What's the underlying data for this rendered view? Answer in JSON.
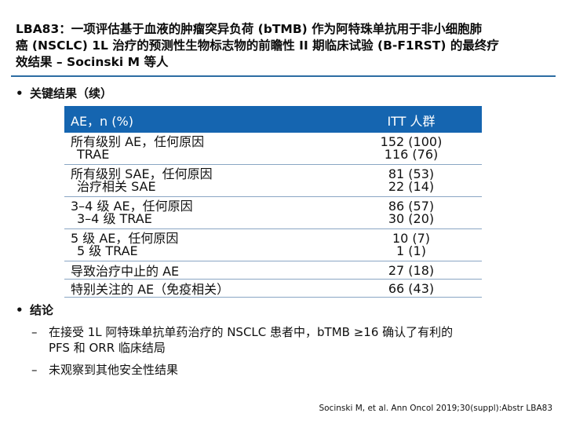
{
  "title": {
    "line1": "LBA83：一项评估基于血液的肿瘤突异负荷 (bTMB) 作为阿特珠单抗用于非小细胞肺",
    "line2": "癌 (NSCLC) 1L 治疗的预测性生物标志物的前瞻性 II 期临床试验 (B-F1RST) 的最终疗",
    "line3": "效结果 – Socinski M 等人"
  },
  "section1": {
    "bullet": "•",
    "label": "关键结果（续）"
  },
  "table": {
    "header": {
      "col1": "AE，n (%)",
      "col2": "ITT 人群"
    },
    "rows": [
      {
        "label": "所有级别 AE，任何原因",
        "sublabel": "TRAE",
        "value": "152 (100)",
        "subvalue": "116 (76)"
      },
      {
        "label": "所有级别 SAE，任何原因",
        "sublabel": "治疗相关 SAE",
        "value": "81 (53)",
        "subvalue": "22 (14)"
      },
      {
        "label": "3–4 级 AE，任何原因",
        "sublabel": "3–4 级 TRAE",
        "value": "86 (57)",
        "subvalue": "30 (20)"
      },
      {
        "label": "5 级 AE，任何原因",
        "sublabel": "5 级 TRAE",
        "value": "10 (7)",
        "subvalue": "1 (1)"
      },
      {
        "label": "导致治疗中止的 AE",
        "value": "27 (18)"
      },
      {
        "label": "特别关注的 AE（免疫相关）",
        "value": "66 (43)"
      }
    ]
  },
  "section2": {
    "bullet": "•",
    "label": "结论"
  },
  "conclusions": [
    {
      "dash": "–",
      "line1": "在接受 1L 阿特珠单抗单药治疗的 NSCLC 患者中，bTMB ≥16 确认了有利的",
      "line2": "PFS 和 ORR 临床结局"
    },
    {
      "dash": "–",
      "line1": "未观察到其他安全性结果"
    }
  ],
  "source": "Socinski M, et al. Ann Oncol 2019;30(suppl):Abstr LBA83",
  "colors": {
    "accent": "#1565b0",
    "rule": "#2d6da3"
  }
}
